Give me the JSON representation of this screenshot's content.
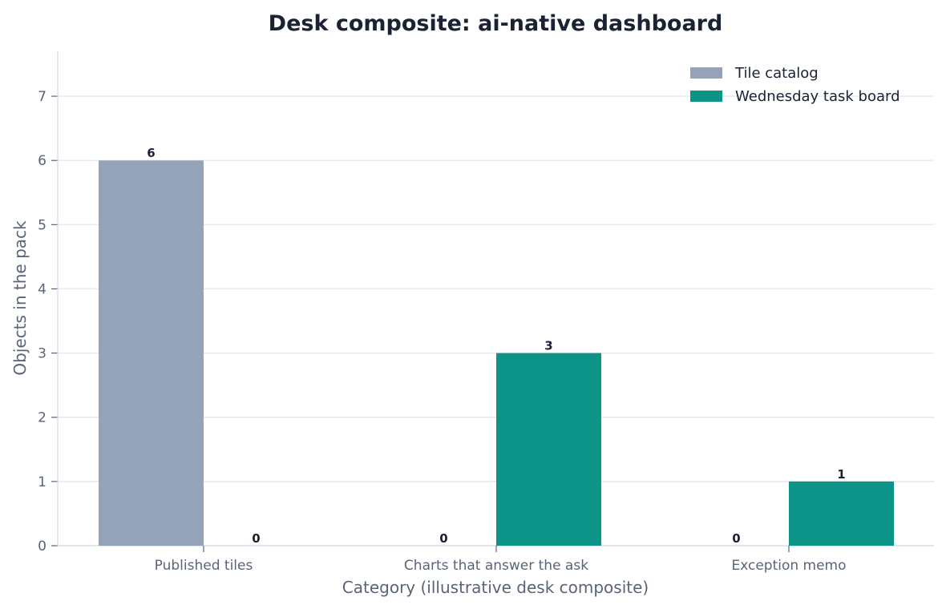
{
  "chart_data": {
    "type": "bar",
    "title": "Desk composite: ai-native dashboard",
    "xlabel": "Category (illustrative desk composite)",
    "ylabel": "Objects in the pack",
    "categories": [
      "Published tiles",
      "Charts that answer the ask",
      "Exception memo"
    ],
    "series": [
      {
        "name": "Tile catalog",
        "color": "#94a3b8",
        "values": [
          6,
          0,
          0
        ]
      },
      {
        "name": "Wednesday task board",
        "color": "#0d9488",
        "values": [
          0,
          3,
          1
        ]
      }
    ],
    "ylim": [
      0,
      7.7
    ],
    "yticks": [
      0,
      1,
      2,
      3,
      4,
      5,
      6,
      7
    ],
    "grid": true,
    "legend_position": "top-right"
  }
}
